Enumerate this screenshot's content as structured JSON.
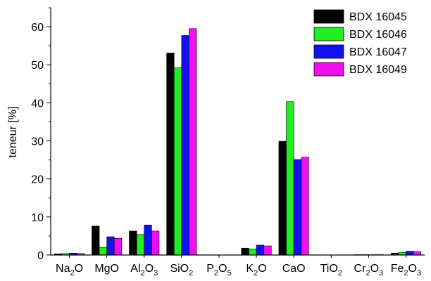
{
  "chart_data": {
    "type": "bar",
    "title": "",
    "xlabel": "",
    "ylabel": "teneur [%]",
    "ylim": [
      0,
      65
    ],
    "yticks": [
      0,
      10,
      20,
      30,
      40,
      50,
      60
    ],
    "grid": false,
    "legend_position": "top-right",
    "categories": [
      {
        "base": "Na",
        "sub1": "2",
        "mid": "O",
        "sub2": ""
      },
      {
        "base": "MgO",
        "sub1": "",
        "mid": "",
        "sub2": ""
      },
      {
        "base": "Al",
        "sub1": "2",
        "mid": "O",
        "sub2": "3"
      },
      {
        "base": "SiO",
        "sub1": "2",
        "mid": "",
        "sub2": ""
      },
      {
        "base": "P",
        "sub1": "2",
        "mid": "O",
        "sub2": "5"
      },
      {
        "base": "K",
        "sub1": "2",
        "mid": "O",
        "sub2": ""
      },
      {
        "base": "CaO",
        "sub1": "",
        "mid": "",
        "sub2": ""
      },
      {
        "base": "TiO",
        "sub1": "2",
        "mid": "",
        "sub2": ""
      },
      {
        "base": "Cr",
        "sub1": "2",
        "mid": "O",
        "sub2": "3"
      },
      {
        "base": "Fe",
        "sub1": "2",
        "mid": "O",
        "sub2": "3"
      }
    ],
    "series": [
      {
        "name": "BDX 16045",
        "color": "#000000",
        "values": [
          0.3,
          7.6,
          6.3,
          53.1,
          0.0,
          1.8,
          29.9,
          0.0,
          0.1,
          0.5
        ]
      },
      {
        "name": "BDX 16046",
        "color": "#22ee22",
        "values": [
          0.4,
          2.0,
          5.4,
          49.2,
          0.0,
          1.6,
          40.3,
          0.0,
          0.1,
          0.7
        ]
      },
      {
        "name": "BDX 16047",
        "color": "#1111ee",
        "values": [
          0.5,
          4.8,
          7.9,
          57.7,
          0.0,
          2.6,
          25.1,
          0.0,
          0.1,
          1.0
        ]
      },
      {
        "name": "BDX 16049",
        "color": "#ee11ee",
        "values": [
          0.4,
          4.4,
          6.3,
          59.5,
          0.0,
          2.4,
          25.7,
          0.0,
          0.1,
          0.9
        ]
      }
    ]
  }
}
